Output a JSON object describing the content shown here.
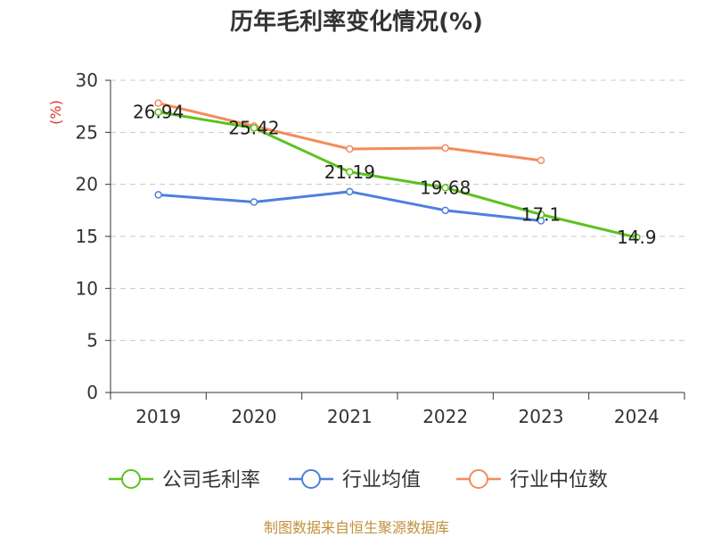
{
  "title": "历年毛利率变化情况(%)",
  "source": "制图数据来自恒生聚源数据库",
  "colors": {
    "company": "#5cc21d",
    "industry_avg": "#4e7fdd",
    "industry_median": "#f48b5a",
    "ylabel": "#e03030",
    "axis": "#333333",
    "grid": "#c8c8c8"
  },
  "chart_data": {
    "type": "line",
    "title": "历年毛利率变化情况(%)",
    "xlabel": "",
    "ylabel": "(%)",
    "categories": [
      "2019",
      "2020",
      "2021",
      "2022",
      "2023",
      "2024"
    ],
    "ylim": [
      0,
      30
    ],
    "yticks": [
      0,
      5,
      10,
      15,
      20,
      25,
      30
    ],
    "grid": true,
    "legend_position": "bottom",
    "series": [
      {
        "name": "公司毛利率",
        "color_key": "company",
        "values": [
          26.94,
          25.42,
          21.19,
          19.68,
          17.1,
          14.9
        ],
        "labels": [
          "26.94",
          "25.42",
          "21.19",
          "19.68",
          "17.1",
          "14.9"
        ]
      },
      {
        "name": "行业均值",
        "color_key": "industry_avg",
        "values": [
          19.0,
          18.3,
          19.3,
          17.5,
          16.5,
          null
        ]
      },
      {
        "name": "行业中位数",
        "color_key": "industry_median",
        "values": [
          27.8,
          25.6,
          23.4,
          23.5,
          22.3,
          null
        ]
      }
    ]
  }
}
